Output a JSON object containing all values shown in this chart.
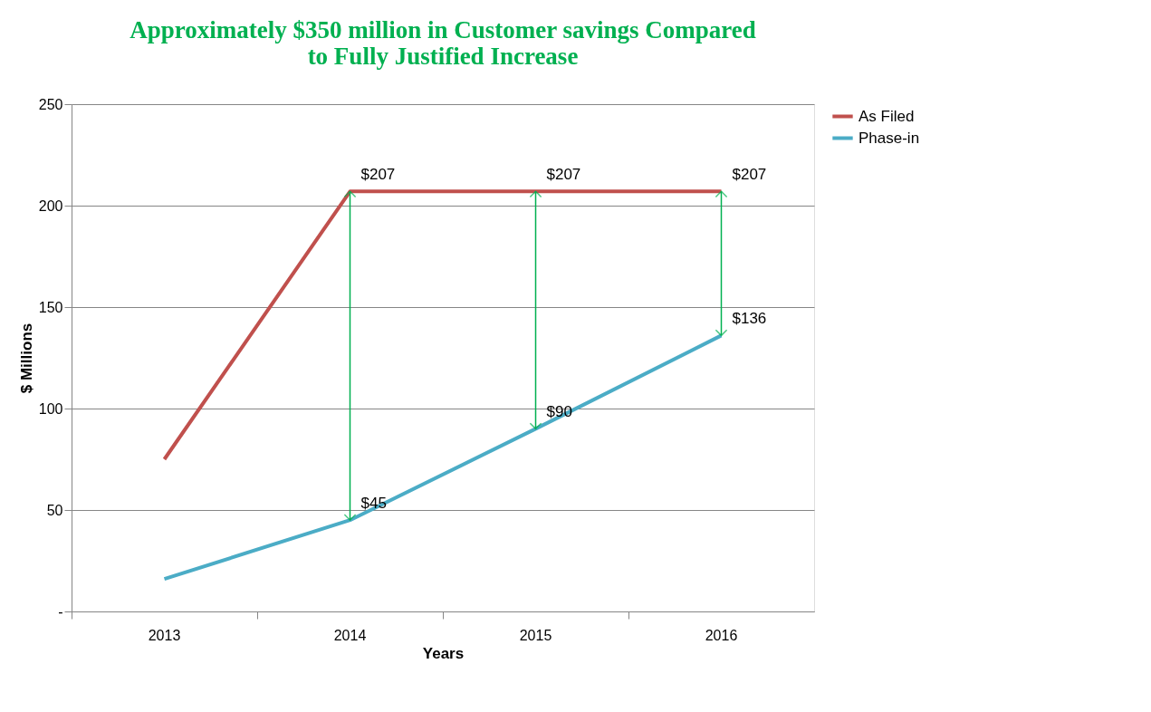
{
  "chart_data": {
    "type": "line",
    "title": [
      "Approximately $350 million in Customer savings Compared",
      "to Fully Justified Increase"
    ],
    "xlabel": "Years",
    "ylabel": "$ Millions",
    "categories": [
      "2013",
      "2014",
      "2015",
      "2016"
    ],
    "series": [
      {
        "name": "As Filed",
        "color": "#c0504d",
        "values": [
          75,
          207,
          207,
          207
        ],
        "value_labels": [
          null,
          "$207",
          "$207",
          "$207"
        ]
      },
      {
        "name": "Phase-in",
        "color": "#4bacc6",
        "values": [
          16,
          45,
          90,
          136
        ],
        "value_labels": [
          null,
          "$45",
          "$90",
          "$136"
        ]
      }
    ],
    "ylim": [
      0,
      250
    ],
    "yticks": [
      {
        "value": 0,
        "label": "-"
      },
      50,
      100,
      150,
      200,
      250
    ],
    "grid": "y",
    "legend": "right",
    "marker": "none",
    "line_style": "solid"
  }
}
